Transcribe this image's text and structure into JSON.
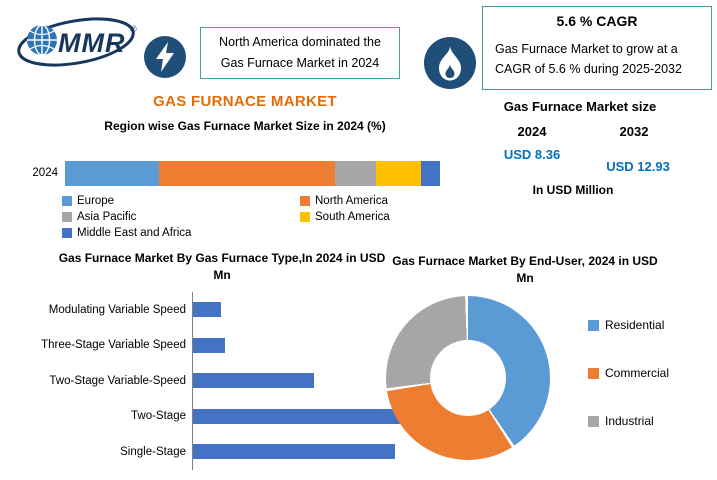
{
  "colors": {
    "accent_orange": "#E36C09",
    "value_blue": "#0070C0",
    "icon_navy": "#1F4E79",
    "callout_border_teal": "#3FA0A0",
    "logo_navy": "#17375E"
  },
  "header": {
    "logo_text": "MMR",
    "logo_reg": "®",
    "dominance_callout": "North America dominated the Gas Furnace Market in 2024",
    "cagr_title": "5.6 % CAGR",
    "cagr_text": "Gas Furnace Market to grow at a CAGR of 5.6 % during 2025-2032"
  },
  "titles": {
    "main_title": "GAS FURNACE MARKET"
  },
  "market_size": {
    "title": "Gas Furnace Market size",
    "year_start": "2024",
    "year_end": "2032",
    "value_start": "USD 8.36",
    "value_end": "USD 12.93",
    "unit_note": "In USD Million"
  },
  "chart_data": [
    {
      "type": "bar",
      "subtype": "stacked-horizontal-100pct",
      "title": "Region wise Gas Furnace Market Size in 2024 (%)",
      "categories": [
        "2024"
      ],
      "unit": "%",
      "legend_position": "bottom",
      "series": [
        {
          "name": "Europe",
          "color": "#5B9BD5",
          "values": [
            25
          ]
        },
        {
          "name": "North America",
          "color": "#ED7D31",
          "values": [
            47
          ]
        },
        {
          "name": "Asia Pacific",
          "color": "#A6A6A6",
          "values": [
            11
          ]
        },
        {
          "name": "South America",
          "color": "#FFC000",
          "values": [
            12
          ]
        },
        {
          "name": "Middle East and Africa",
          "color": "#4472C4",
          "values": [
            5
          ]
        }
      ]
    },
    {
      "type": "bar",
      "subtype": "horizontal",
      "title": "Gas Furnace Market By Gas Furnace Type,In 2024 in USD Mn",
      "categories": [
        "Modulating Variable Speed",
        "Three-Stage Variable Speed",
        "Two-Stage Variable-Speed",
        "Two-Stage",
        "Single-Stage"
      ],
      "values": [
        0.4,
        0.45,
        1.7,
        3.05,
        2.85
      ],
      "bar_color": "#4472C4",
      "xlim": [
        0,
        3.2
      ],
      "xlabel": "",
      "ylabel": ""
    },
    {
      "type": "pie",
      "subtype": "donut",
      "title": "Gas Furnace Market By End-User, 2024 in USD Mn",
      "labels": [
        "Residential",
        "Commercial",
        "Industrial"
      ],
      "values": [
        41,
        32,
        27
      ],
      "colors": [
        "#5B9BD5",
        "#ED7D31",
        "#A6A6A6"
      ],
      "legend_position": "right"
    }
  ]
}
